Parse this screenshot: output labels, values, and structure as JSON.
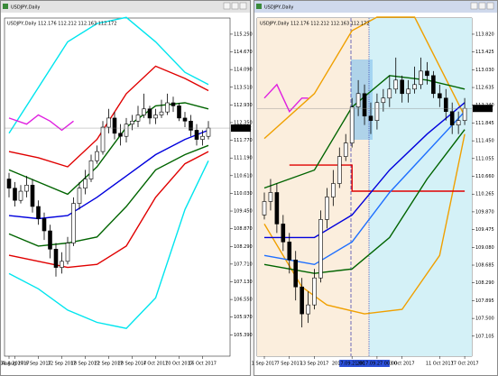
{
  "chart_data": [
    {
      "type": "candlestick",
      "window_title": "USDJPY,Daily",
      "title": "USDJPY,Daily  112.176 112.212 112.163 112.172",
      "price_label": "112.172",
      "categories": [
        "30 Aug 2017",
        "31 Aug 2017",
        null,
        null,
        null,
        "6 Sep 2017",
        null,
        null,
        null,
        "12 Sep 2017",
        null,
        null,
        null,
        "18 Sep 2017",
        null,
        null,
        null,
        "22 Sep 2017",
        null,
        null,
        null,
        "28 Sep 2017",
        null,
        null,
        null,
        "4 Oct 2017",
        null,
        null,
        null,
        "10 Oct 2017",
        null,
        null,
        null,
        "16 Oct 2017",
        null
      ],
      "open": [
        110.5,
        110.2,
        109.8,
        110.1,
        110.3,
        109.6,
        109.2,
        108.8,
        108.2,
        107.6,
        107.8,
        108.4,
        109.7,
        110.2,
        110.5,
        111.1,
        111.4,
        112.2,
        112.5,
        112.0,
        111.9,
        112.3,
        112.4,
        112.6,
        112.8,
        112.5,
        112.6,
        112.7,
        113.0,
        112.9,
        112.5,
        112.4,
        112.1,
        111.8,
        111.9
      ],
      "high": [
        110.7,
        110.4,
        110.3,
        110.6,
        110.5,
        109.8,
        109.4,
        109.0,
        108.4,
        108.1,
        108.6,
        109.9,
        110.4,
        110.8,
        111.3,
        111.6,
        112.4,
        112.8,
        112.7,
        112.3,
        112.5,
        112.6,
        112.9,
        113.3,
        112.9,
        112.8,
        113.1,
        113.3,
        113.2,
        113.0,
        112.7,
        112.6,
        112.3,
        112.1,
        112.4
      ],
      "low": [
        109.9,
        109.6,
        109.7,
        109.9,
        109.4,
        109.0,
        108.5,
        107.9,
        107.3,
        107.4,
        107.7,
        108.3,
        109.5,
        110.0,
        110.4,
        111.0,
        111.3,
        112.0,
        111.8,
        111.6,
        111.7,
        112.1,
        112.2,
        112.5,
        112.3,
        112.3,
        112.5,
        112.6,
        112.7,
        112.4,
        112.2,
        111.9,
        111.6,
        111.6,
        111.8
      ],
      "close": [
        110.2,
        109.8,
        110.1,
        110.3,
        109.6,
        109.2,
        108.8,
        108.2,
        107.6,
        107.8,
        108.4,
        109.7,
        110.2,
        110.5,
        111.1,
        111.4,
        112.2,
        112.5,
        112.0,
        111.9,
        112.3,
        112.4,
        112.6,
        112.8,
        112.5,
        112.6,
        112.7,
        113.0,
        112.9,
        112.5,
        112.4,
        112.1,
        111.8,
        111.9,
        112.17
      ],
      "ylim": [
        104.69,
        115.78
      ],
      "yticks": [
        {
          "value": 115.25,
          "label": "115.250"
        },
        {
          "value": 114.67,
          "label": "114.670"
        },
        {
          "value": 114.09,
          "label": "114.090"
        },
        {
          "value": 113.51,
          "label": "113.510"
        },
        {
          "value": 112.93,
          "label": "112.930"
        },
        {
          "value": 112.35,
          "label": "112.350"
        },
        {
          "value": 111.77,
          "label": "111.770"
        },
        {
          "value": 111.19,
          "label": "111.190"
        },
        {
          "value": 110.61,
          "label": "110.610"
        },
        {
          "value": 110.03,
          "label": "110.030"
        },
        {
          "value": 109.45,
          "label": "109.450"
        },
        {
          "value": 108.87,
          "label": "108.870"
        },
        {
          "value": 108.29,
          "label": "108.290"
        },
        {
          "value": 107.71,
          "label": "107.710"
        },
        {
          "value": 107.13,
          "label": "107.130"
        },
        {
          "value": 106.55,
          "label": "106.550"
        },
        {
          "value": 105.97,
          "label": "105.970"
        },
        {
          "value": 105.39,
          "label": "105.390"
        }
      ],
      "series": [
        {
          "color": "#00e5ee",
          "x": [
            0,
            5,
            10,
            15,
            20,
            25,
            30,
            34
          ],
          "values": [
            112.0,
            113.5,
            115.0,
            115.6,
            115.8,
            115.0,
            114.0,
            113.6
          ]
        },
        {
          "color": "#00e5ee",
          "x": [
            0,
            5,
            10,
            15,
            20,
            25,
            30,
            34
          ],
          "values": [
            107.4,
            106.9,
            106.2,
            105.8,
            105.6,
            106.6,
            109.5,
            111.1
          ]
        },
        {
          "color": "#e00000",
          "x": [
            0,
            5,
            10,
            15,
            20,
            25,
            30,
            34
          ],
          "values": [
            111.4,
            111.2,
            110.9,
            111.8,
            113.3,
            114.2,
            113.8,
            113.4
          ]
        },
        {
          "color": "#e00000",
          "x": [
            0,
            5,
            10,
            15,
            20,
            25,
            30,
            34
          ],
          "values": [
            108.0,
            107.8,
            107.6,
            107.7,
            108.3,
            109.9,
            111.0,
            111.4
          ]
        },
        {
          "color": "#006400",
          "x": [
            0,
            5,
            10,
            15,
            20,
            25,
            30,
            34
          ],
          "values": [
            110.8,
            110.4,
            110.0,
            110.9,
            112.2,
            112.9,
            113.0,
            112.8
          ]
        },
        {
          "color": "#006400",
          "x": [
            0,
            5,
            10,
            15,
            20,
            25,
            30,
            34
          ],
          "values": [
            108.7,
            108.3,
            108.4,
            108.6,
            109.6,
            110.8,
            111.3,
            111.6
          ]
        },
        {
          "color": "#0000dd",
          "x": [
            0,
            5,
            10,
            15,
            20,
            25,
            30,
            34
          ],
          "values": [
            109.3,
            109.2,
            109.3,
            109.9,
            110.6,
            111.3,
            111.8,
            112.1
          ]
        },
        {
          "color": "#e020e0",
          "x": [
            0,
            3,
            5,
            7,
            9,
            11
          ],
          "values": [
            112.5,
            112.3,
            112.6,
            112.4,
            112.1,
            112.4
          ]
        }
      ]
    },
    {
      "type": "candlestick",
      "window_title": "USDJPY,Daily",
      "title": "USDJPY,Daily  112.176 112.212 112.163 112.172",
      "price_label": "112.172",
      "categories": [
        "1 Sep 2017",
        null,
        null,
        null,
        "7 Sep 2017",
        null,
        null,
        null,
        "13 Sep 2017",
        null,
        null,
        null,
        null,
        null,
        "2017.09.21 00:00",
        null,
        null,
        null,
        "2017.09.27 00:00",
        null,
        null,
        null,
        "3 Oct 2017",
        null,
        null,
        null,
        null,
        null,
        "11 Oct 2017",
        null,
        null,
        null,
        "17 Oct 2017"
      ],
      "open": [
        109.8,
        110.1,
        110.3,
        109.6,
        109.2,
        108.8,
        108.2,
        107.6,
        107.8,
        108.4,
        109.7,
        110.2,
        110.5,
        111.1,
        111.4,
        112.2,
        112.5,
        112.0,
        111.9,
        112.3,
        112.4,
        112.6,
        112.8,
        112.5,
        112.6,
        112.7,
        113.0,
        112.9,
        112.5,
        112.4,
        112.1,
        111.8,
        111.9
      ],
      "high": [
        110.3,
        110.6,
        110.5,
        109.8,
        109.4,
        109.0,
        108.4,
        108.1,
        108.6,
        109.9,
        110.4,
        110.8,
        111.3,
        111.6,
        112.4,
        112.8,
        112.7,
        112.3,
        112.5,
        112.6,
        112.9,
        113.3,
        112.9,
        112.8,
        113.1,
        113.3,
        113.2,
        113.0,
        112.7,
        112.6,
        112.3,
        112.1,
        112.4
      ],
      "low": [
        109.7,
        109.9,
        109.4,
        109.0,
        108.5,
        107.9,
        107.3,
        107.4,
        107.7,
        108.3,
        109.5,
        110.0,
        110.4,
        111.0,
        111.3,
        112.0,
        111.8,
        111.6,
        111.7,
        112.1,
        112.2,
        112.5,
        112.3,
        112.3,
        112.5,
        112.6,
        112.7,
        112.4,
        112.2,
        111.9,
        111.6,
        111.6,
        111.8
      ],
      "close": [
        110.1,
        110.3,
        109.6,
        109.2,
        108.8,
        108.2,
        107.6,
        107.8,
        108.4,
        109.7,
        110.2,
        110.5,
        111.1,
        111.4,
        112.2,
        112.5,
        112.0,
        111.9,
        112.3,
        112.4,
        112.6,
        112.8,
        112.5,
        112.6,
        112.7,
        113.0,
        112.9,
        112.5,
        112.4,
        112.1,
        111.8,
        111.9,
        112.17
      ],
      "ylim": [
        106.66,
        114.18
      ],
      "yticks": [
        {
          "value": 113.82,
          "label": "113.820"
        },
        {
          "value": 113.425,
          "label": "113.425"
        },
        {
          "value": 113.03,
          "label": "113.030"
        },
        {
          "value": 112.635,
          "label": "112.635"
        },
        {
          "value": 112.24,
          "label": "112.240"
        },
        {
          "value": 111.845,
          "label": "111.845"
        },
        {
          "value": 111.45,
          "label": "111.450"
        },
        {
          "value": 111.055,
          "label": "111.055"
        },
        {
          "value": 110.66,
          "label": "110.660"
        },
        {
          "value": 110.265,
          "label": "110.265"
        },
        {
          "value": 109.87,
          "label": "109.870"
        },
        {
          "value": 109.475,
          "label": "109.475"
        },
        {
          "value": 109.08,
          "label": "109.080"
        },
        {
          "value": 108.685,
          "label": "108.685"
        },
        {
          "value": 108.29,
          "label": "108.290"
        },
        {
          "value": 107.895,
          "label": "107.895"
        },
        {
          "value": 107.5,
          "label": "107.500"
        },
        {
          "value": 107.105,
          "label": "107.105"
        }
      ],
      "series": [
        {
          "color": "#f0a000",
          "x": [
            0,
            8,
            14,
            18,
            24,
            32
          ],
          "values": [
            111.5,
            112.5,
            113.9,
            114.2,
            114.2,
            112.0
          ]
        },
        {
          "color": "#f0a000",
          "x": [
            0,
            6,
            10,
            16,
            22,
            28,
            32
          ],
          "values": [
            109.6,
            108.2,
            107.8,
            107.6,
            107.7,
            108.9,
            111.6
          ]
        },
        {
          "color": "#e00000",
          "x": [
            4,
            14,
            14,
            32
          ],
          "values": [
            110.91,
            110.91,
            110.33,
            110.33
          ]
        },
        {
          "color": "#006400",
          "x": [
            0,
            8,
            14,
            20,
            26,
            32
          ],
          "values": [
            110.4,
            110.8,
            112.2,
            112.9,
            112.8,
            112.6
          ]
        },
        {
          "color": "#006400",
          "x": [
            0,
            8,
            14,
            20,
            26,
            32
          ],
          "values": [
            108.7,
            108.5,
            108.6,
            109.3,
            110.6,
            111.7
          ]
        },
        {
          "color": "#1e6fff",
          "x": [
            0,
            8,
            14,
            20,
            26,
            32
          ],
          "values": [
            108.9,
            108.7,
            109.2,
            110.3,
            111.2,
            112.1
          ]
        },
        {
          "color": "#0000dd",
          "x": [
            0,
            8,
            14,
            20,
            26,
            32
          ],
          "values": [
            109.3,
            109.3,
            109.8,
            110.8,
            111.6,
            112.3
          ]
        },
        {
          "color": "#e020e0",
          "x": [
            0,
            2,
            4,
            6,
            7
          ],
          "values": [
            112.4,
            112.7,
            112.1,
            112.4,
            112.4
          ]
        }
      ]
    }
  ]
}
